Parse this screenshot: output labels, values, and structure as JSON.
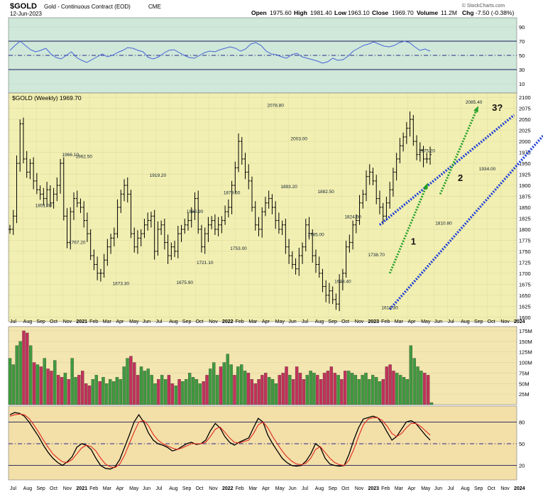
{
  "header": {
    "symbol": "$GOLD",
    "name": "Gold - Continuous Contract (EOD)",
    "exchange": "CME",
    "date": "12-Jun-2023",
    "copyright": "© StockCharts.com",
    "open_label": "Open",
    "open": "1975.60",
    "high_label": "High",
    "high": "1981.40",
    "low_label": "Low",
    "low": "1963.10",
    "close_label": "Close",
    "close": "1969.70",
    "volume_label": "Volume",
    "volume": "11.2M",
    "chg_label": "Chg",
    "chg": "-7.50 (-0.38%)"
  },
  "colors": {
    "rsi_bg": "#cfe8d9",
    "price_bg": "#f2efb2",
    "volume_bg": "#f3e6b0",
    "stoch_bg": "#f3dfa8",
    "rsi_line": "#4a63d8",
    "bar": "#000000",
    "vol_up": "#3f9a3f",
    "vol_down": "#c2315a",
    "stoch_k": "#000000",
    "stoch_d": "#e0271f",
    "channel": "#1e3fd8",
    "wave": "#23a02a"
  },
  "chart_data": [
    {
      "panel": "rsi",
      "type": "line",
      "ylim": [
        0,
        100
      ],
      "yticks": [
        "90",
        "70",
        "50",
        "30",
        "10"
      ],
      "ytick_values": [
        90,
        70,
        50,
        30,
        10
      ],
      "reference_lines": [
        70,
        50,
        30
      ],
      "values": [
        57,
        64,
        70,
        64,
        58,
        55,
        57,
        60,
        52,
        47,
        45,
        50,
        55,
        47,
        43,
        40,
        44,
        48,
        52,
        48,
        50,
        54,
        57,
        61,
        60,
        57,
        55,
        47,
        45,
        48,
        53,
        57,
        58,
        54,
        50,
        47,
        46,
        50,
        54,
        56,
        55,
        58,
        60,
        62,
        60,
        56,
        59,
        66,
        68,
        64,
        56,
        52,
        51,
        48,
        46,
        51,
        53,
        48,
        46,
        44,
        42,
        39,
        41,
        46,
        43,
        44,
        49,
        56,
        60,
        64,
        66,
        69,
        66,
        63,
        62,
        64,
        68,
        70,
        68,
        62,
        57,
        59,
        56
      ]
    },
    {
      "panel": "price",
      "type": "ohlc",
      "legend": "$GOLD (Weekly) 1969.70",
      "ylim": [
        1590,
        2110
      ],
      "yticks": [
        "2100",
        "2075",
        "2050",
        "2025",
        "2000",
        "1975",
        "1950",
        "1925",
        "1900",
        "1875",
        "1850",
        "1825",
        "1800",
        "1775",
        "1750",
        "1725",
        "1700",
        "1675",
        "1650",
        "1625",
        "1600"
      ],
      "ytick_values": [
        2100,
        2075,
        2050,
        2025,
        2000,
        1975,
        1950,
        1925,
        1900,
        1875,
        1850,
        1825,
        1800,
        1775,
        1750,
        1725,
        1700,
        1675,
        1650,
        1625,
        1600
      ],
      "x_labels": [
        "Jul",
        "Aug",
        "Sep",
        "Oct",
        "Nov",
        "2021",
        "Feb",
        "Mar",
        "Apr",
        "May",
        "Jun",
        "Jul",
        "Aug",
        "Sep",
        "Oct",
        "Nov",
        "2022",
        "Feb",
        "Mar",
        "Apr",
        "May",
        "Jun",
        "Jul",
        "Aug",
        "Sep",
        "Oct",
        "Nov",
        "2023",
        "Feb",
        "Mar",
        "Apr",
        "May",
        "Jun",
        "Jul",
        "Aug",
        "Sep",
        "Oct",
        "Nov",
        "2024"
      ],
      "closes": [
        1800,
        1830,
        1950,
        2040,
        1960,
        1930,
        1950,
        1910,
        1890,
        1880,
        1870,
        1890,
        1860,
        1880,
        1900,
        1950,
        1830,
        1770,
        1840,
        1870,
        1860,
        1850,
        1820,
        1790,
        1740,
        1720,
        1700,
        1700,
        1730,
        1760,
        1780,
        1790,
        1850,
        1880,
        1900,
        1880,
        1790,
        1760,
        1780,
        1790,
        1810,
        1820,
        1830,
        1750,
        1800,
        1810,
        1770,
        1740,
        1760,
        1750,
        1790,
        1800,
        1810,
        1820,
        1840,
        1870,
        1800,
        1760,
        1790,
        1810,
        1820,
        1800,
        1810,
        1820,
        1840,
        1850,
        1900,
        1940,
        2000,
        1960,
        1930,
        1910,
        1850,
        1810,
        1800,
        1840,
        1860,
        1870,
        1850,
        1820,
        1800,
        1810,
        1760,
        1740,
        1720,
        1710,
        1740,
        1760,
        1810,
        1790,
        1740,
        1720,
        1700,
        1670,
        1650,
        1660,
        1640,
        1630,
        1680,
        1700,
        1760,
        1770,
        1810,
        1820,
        1860,
        1880,
        1920,
        1930,
        1910,
        1870,
        1850,
        1830,
        1860,
        1890,
        1930,
        1960,
        1990,
        2010,
        2030,
        2050,
        2000,
        1970,
        1980,
        1960,
        1960,
        1970
      ],
      "annotations": [
        {
          "label": "1966.10",
          "x": 18,
          "y": 1966.1
        },
        {
          "label": "1962.50",
          "x": 22,
          "y": 1962.5
        },
        {
          "label": "1851.00",
          "x": 10,
          "y": 1851
        },
        {
          "label": "1767.20",
          "x": 20,
          "y": 1767.2
        },
        {
          "label": "1673.30",
          "x": 33,
          "y": 1673.3
        },
        {
          "label": "1919.20",
          "x": 44,
          "y": 1919.2
        },
        {
          "label": "1836.90",
          "x": 55,
          "y": 1836.9
        },
        {
          "label": "1675.90",
          "x": 52,
          "y": 1675.9
        },
        {
          "label": "1721.10",
          "x": 58,
          "y": 1721.1
        },
        {
          "label": "1879.50",
          "x": 66,
          "y": 1879.5
        },
        {
          "label": "1753.00",
          "x": 68,
          "y": 1753
        },
        {
          "label": "2078.80",
          "x": 79,
          "y": 2078.8
        },
        {
          "label": "2003.00",
          "x": 86,
          "y": 2003
        },
        {
          "label": "1893.20",
          "x": 83,
          "y": 1893.2
        },
        {
          "label": "1882.50",
          "x": 94,
          "y": 1882.5
        },
        {
          "label": "1785.00",
          "x": 91,
          "y": 1785
        },
        {
          "label": "1824.60",
          "x": 102,
          "y": 1824.6
        },
        {
          "label": "1678.40",
          "x": 99,
          "y": 1678.4
        },
        {
          "label": "1738.70",
          "x": 109,
          "y": 1738.7
        },
        {
          "label": "1618.30",
          "x": 113,
          "y": 1618.3
        },
        {
          "label": "1975.20",
          "x": 124,
          "y": 1975.2
        },
        {
          "label": "1810.80",
          "x": 129,
          "y": 1810.8
        },
        {
          "label": "2085.40",
          "x": 138,
          "y": 2085.4
        },
        {
          "label": "1934.00",
          "x": 142,
          "y": 1934
        }
      ],
      "wave_labels": [
        {
          "label": "1",
          "x": 120,
          "y": 1765
        },
        {
          "label": "2",
          "x": 134,
          "y": 1910
        },
        {
          "label": "3?",
          "x": 145,
          "y": 2070
        }
      ]
    },
    {
      "panel": "volume",
      "type": "bar",
      "ylim": [
        0,
        185
      ],
      "yticks": [
        "175M",
        "150M",
        "125M",
        "100M",
        "75M",
        "50M",
        "25M"
      ],
      "ytick_values": [
        175,
        150,
        125,
        100,
        75,
        50,
        25
      ],
      "values": [
        110,
        95,
        140,
        150,
        175,
        170,
        140,
        100,
        95,
        90,
        110,
        85,
        80,
        105,
        70,
        65,
        75,
        60,
        110,
        65,
        70,
        80,
        50,
        45,
        60,
        70,
        55,
        65,
        50,
        60,
        55,
        65,
        60,
        90,
        110,
        115,
        100,
        70,
        90,
        80,
        85,
        70,
        50,
        60,
        70,
        60,
        70,
        50,
        45,
        60,
        55,
        60,
        75,
        65,
        60,
        50,
        55,
        70,
        85,
        100,
        70,
        90,
        100,
        120,
        95,
        70,
        90,
        95,
        80,
        75,
        60,
        50,
        60,
        70,
        75,
        65,
        60,
        50,
        70,
        75,
        90,
        70,
        60,
        90,
        75,
        60,
        70,
        80,
        75,
        70,
        60,
        75,
        80,
        90,
        75,
        70,
        60,
        80,
        80,
        75,
        70,
        60,
        70,
        75,
        60,
        70,
        65,
        55,
        60,
        90,
        95,
        80,
        75,
        70,
        65,
        60,
        140,
        110,
        90,
        80,
        75,
        70,
        5
      ],
      "up": [
        1,
        1,
        1,
        1,
        0,
        0,
        1,
        0,
        1,
        0,
        1,
        0,
        0,
        1,
        0,
        0,
        1,
        0,
        1,
        1,
        0,
        0,
        0,
        0,
        1,
        1,
        0,
        1,
        1,
        1,
        1,
        1,
        1,
        1,
        1,
        0,
        0,
        0,
        1,
        1,
        1,
        1,
        1,
        0,
        1,
        1,
        0,
        0,
        1,
        0,
        1,
        1,
        1,
        1,
        1,
        1,
        0,
        0,
        1,
        1,
        1,
        0,
        1,
        1,
        1,
        0,
        1,
        1,
        1,
        0,
        0,
        0,
        0,
        0,
        0,
        1,
        1,
        1,
        0,
        0,
        0,
        1,
        0,
        0,
        0,
        0,
        1,
        1,
        1,
        0,
        0,
        0,
        0,
        0,
        0,
        1,
        0,
        0,
        1,
        1,
        1,
        1,
        1,
        1,
        1,
        1,
        1,
        1,
        0,
        0,
        0,
        0,
        1,
        1,
        1,
        1,
        1,
        1,
        1,
        1,
        0,
        0,
        1,
        0,
        1,
        0
      ]
    },
    {
      "panel": "stochastic",
      "type": "line",
      "ylim": [
        0,
        100
      ],
      "yticks": [
        "80",
        "50",
        "20"
      ],
      "ytick_values": [
        80,
        50,
        20
      ],
      "reference_lines": [
        80,
        50,
        20
      ],
      "series": [
        {
          "key": "k",
          "values": [
            90,
            93,
            92,
            88,
            80,
            70,
            60,
            48,
            38,
            30,
            24,
            20,
            25,
            32,
            45,
            50,
            48,
            42,
            30,
            20,
            16,
            15,
            18,
            28,
            45,
            62,
            80,
            90,
            80,
            65,
            55,
            50,
            48,
            45,
            40,
            42,
            46,
            50,
            52,
            49,
            50,
            55,
            68,
            78,
            72,
            60,
            52,
            48,
            52,
            55,
            58,
            72,
            85,
            80,
            62,
            50,
            40,
            30,
            24,
            20,
            19,
            20,
            26,
            36,
            50,
            45,
            30,
            22,
            20,
            19,
            20,
            35,
            55,
            72,
            84,
            86,
            88,
            86,
            78,
            66,
            55,
            60,
            70,
            80,
            82,
            78,
            70,
            62,
            55
          ]
        },
        {
          "key": "d",
          "values": [
            88,
            90,
            91,
            90,
            85,
            76,
            66,
            55,
            45,
            36,
            30,
            25,
            24,
            28,
            36,
            44,
            48,
            46,
            40,
            30,
            22,
            18,
            17,
            22,
            34,
            50,
            66,
            80,
            82,
            75,
            63,
            55,
            50,
            47,
            44,
            42,
            44,
            47,
            50,
            50,
            50,
            52,
            60,
            70,
            73,
            66,
            58,
            52,
            51,
            53,
            55,
            64,
            76,
            80,
            72,
            60,
            50,
            40,
            32,
            26,
            22,
            21,
            23,
            30,
            42,
            46,
            38,
            30,
            24,
            21,
            20,
            27,
            42,
            60,
            76,
            84,
            86,
            86,
            82,
            74,
            64,
            60,
            64,
            72,
            78,
            78,
            74,
            68,
            62
          ]
        }
      ]
    }
  ]
}
